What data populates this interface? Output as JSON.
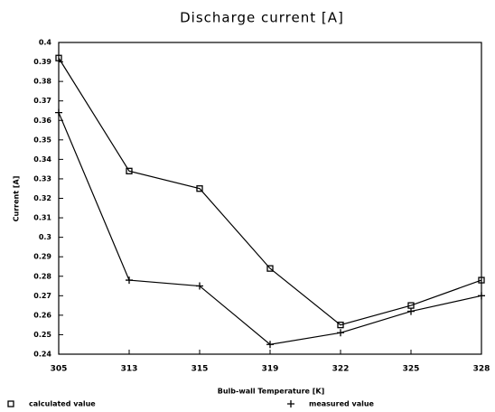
{
  "chart_data": {
    "type": "line",
    "title": "Discharge current [A]",
    "xlabel": "Bulb-wall Temperature [K]",
    "ylabel": "Current [A]",
    "categories": [
      "305",
      "313",
      "315",
      "319",
      "322",
      "325",
      "328"
    ],
    "series": [
      {
        "name": "calculated value",
        "color": "#000000",
        "marker": "square",
        "values": [
          0.392,
          0.334,
          0.325,
          0.284,
          0.255,
          0.265,
          0.278
        ]
      },
      {
        "name": "measured value",
        "color": "#000000",
        "marker": "plus",
        "values": [
          0.364,
          0.278,
          0.275,
          0.245,
          0.251,
          0.262,
          0.27
        ]
      }
    ],
    "ylim": [
      0.24,
      0.4
    ],
    "yticks": [
      0.24,
      0.25,
      0.26,
      0.27,
      0.28,
      0.29,
      0.3,
      0.31,
      0.32,
      0.33,
      0.34,
      0.35,
      0.36,
      0.37,
      0.38,
      0.39,
      0.4
    ],
    "grid": false,
    "legend": "bottom"
  }
}
